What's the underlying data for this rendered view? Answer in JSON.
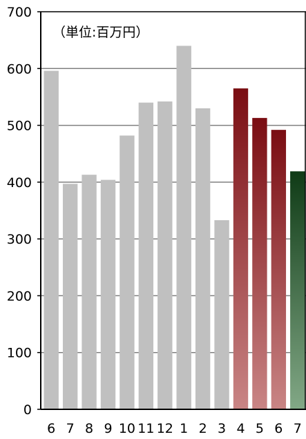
{
  "chart_data": {
    "type": "bar",
    "unit_note": "（単位:百万円）",
    "categories": [
      "6",
      "7",
      "8",
      "9",
      "10",
      "11",
      "12",
      "1",
      "2",
      "3",
      "4",
      "5",
      "6",
      "7"
    ],
    "values": [
      596,
      397,
      413,
      404,
      482,
      540,
      542,
      640,
      530,
      333,
      565,
      513,
      492,
      419
    ],
    "bar_styles": [
      "past",
      "past",
      "past",
      "past",
      "past",
      "past",
      "past",
      "past",
      "past",
      "past",
      "current",
      "current",
      "current",
      "latest"
    ],
    "ylim": [
      0,
      700
    ],
    "y_ticks": [
      0,
      100,
      200,
      300,
      400,
      500,
      600,
      700
    ],
    "grid": true,
    "colors": {
      "past": "#c0c0c0",
      "current_top": "#7a0d12",
      "current_bottom": "#c98585",
      "latest_top": "#0f3b16",
      "latest_bottom": "#82a886",
      "gridline": "#7f7f7f",
      "axis": "#000000"
    }
  }
}
